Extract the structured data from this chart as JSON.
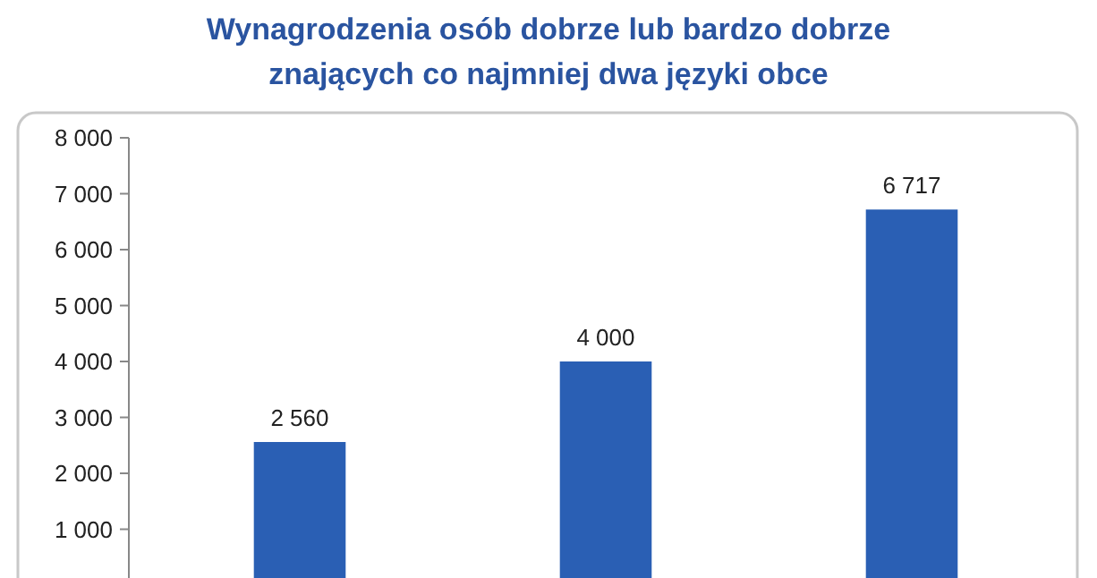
{
  "chart_data": {
    "type": "bar",
    "title": "Wynagrodzenia osób dobrze lub bardzo dobrze znających co najmniej dwa języki obce",
    "categories": [
      null,
      null,
      null
    ],
    "values": [
      2560,
      4000,
      6717
    ],
    "value_labels": [
      "2 560",
      "4 000",
      "6 717"
    ],
    "color": "#2a5fb4",
    "ylim": [
      0,
      8000
    ],
    "yticks": [
      {
        "value": 1000,
        "label": "1 000"
      },
      {
        "value": 2000,
        "label": "2 000"
      },
      {
        "value": 3000,
        "label": "3 000"
      },
      {
        "value": 4000,
        "label": "4 000"
      },
      {
        "value": 5000,
        "label": "5 000"
      },
      {
        "value": 6000,
        "label": "6 000"
      },
      {
        "value": 7000,
        "label": "7 000"
      },
      {
        "value": 8000,
        "label": "8 000"
      }
    ]
  }
}
